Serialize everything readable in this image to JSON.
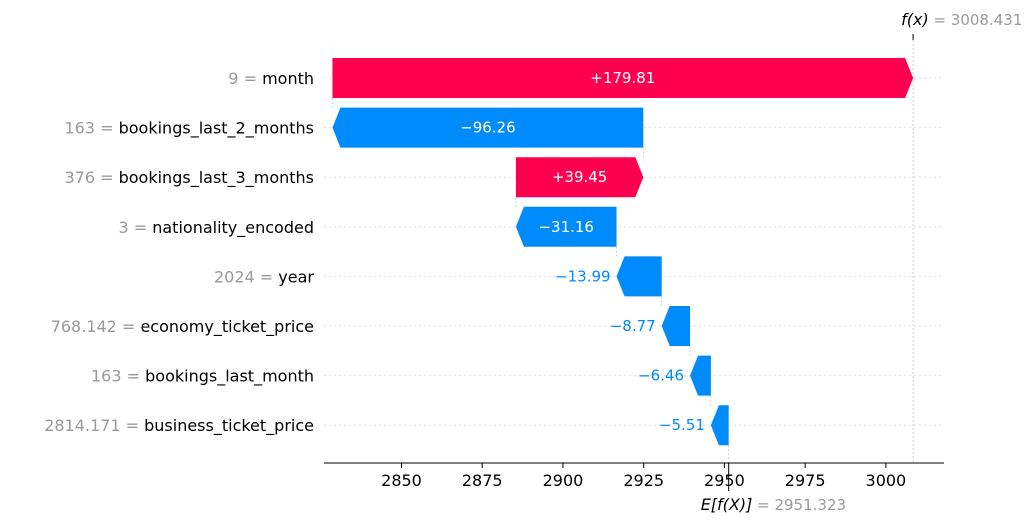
{
  "chart_data": {
    "type": "waterfall",
    "base_value": 2951.323,
    "final_value": 3008.431,
    "base_label": {
      "math": "E[f(X)]",
      "eq": "=",
      "value": "2951.323"
    },
    "final_label": {
      "math": "f(x)",
      "eq": "=",
      "value": "3008.431"
    },
    "features": [
      {
        "value": "9",
        "name": "month",
        "contribution": 179.81,
        "label": "+179.81"
      },
      {
        "value": "163",
        "name": "bookings_last_2_months",
        "contribution": -96.26,
        "label": "−96.26"
      },
      {
        "value": "376",
        "name": "bookings_last_3_months",
        "contribution": 39.45,
        "label": "+39.45"
      },
      {
        "value": "3",
        "name": "nationality_encoded",
        "contribution": -31.16,
        "label": "−31.16"
      },
      {
        "value": "2024",
        "name": "year",
        "contribution": -13.99,
        "label": "−13.99"
      },
      {
        "value": "768.142",
        "name": "economy_ticket_price",
        "contribution": -8.77,
        "label": "−8.77"
      },
      {
        "value": "163",
        "name": "bookings_last_month",
        "contribution": -6.46,
        "label": "−6.46"
      },
      {
        "value": "2814.171",
        "name": "business_ticket_price",
        "contribution": -5.51,
        "label": "−5.51"
      }
    ],
    "x_ticks": [
      2850,
      2875,
      2900,
      2925,
      2950,
      2975,
      3000
    ],
    "xlim": [
      2826,
      3018
    ],
    "colors": {
      "positive": "#ff0051",
      "negative": "#008bfb",
      "positive_text": "#ff0051",
      "negative_text": "#008bfb"
    }
  }
}
